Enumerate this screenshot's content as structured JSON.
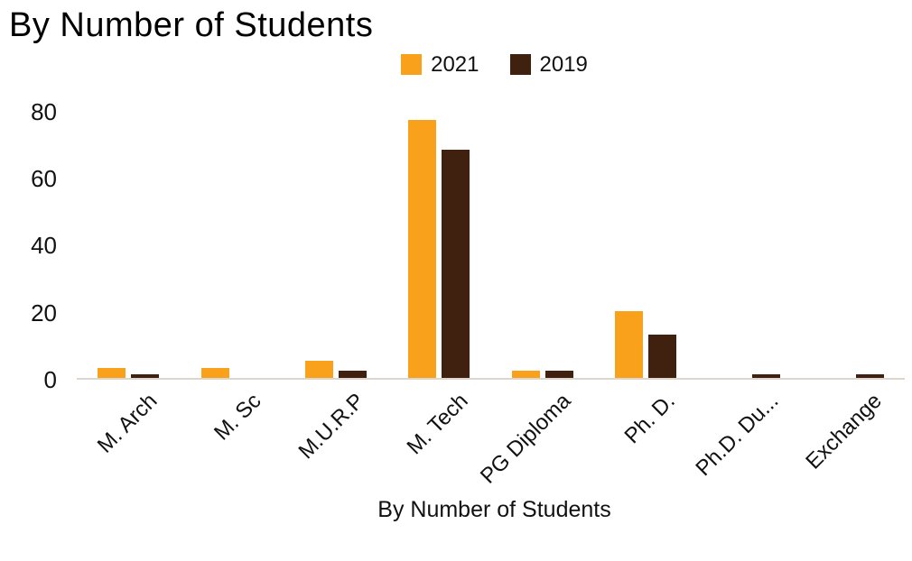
{
  "title": "By Number of Students",
  "legend": {
    "items": [
      {
        "label": "2021",
        "color": "#F9A11B"
      },
      {
        "label": "2019",
        "color": "#40210F"
      }
    ]
  },
  "chart_data": {
    "type": "bar",
    "title": "By Number of Students",
    "xlabel": "By Number of Students",
    "ylabel": "",
    "categories": [
      "M. Arch",
      "M. Sc",
      "M.U.R.P",
      "M. Tech",
      "PG Diploma",
      "Ph. D.",
      "Ph.D. Du...",
      "Exchange"
    ],
    "series": [
      {
        "name": "2021",
        "color": "#F9A11B",
        "values": [
          3,
          3,
          5,
          77,
          2,
          20,
          0,
          0
        ]
      },
      {
        "name": "2019",
        "color": "#40210F",
        "values": [
          1,
          0,
          2,
          68,
          2,
          13,
          1,
          1
        ]
      }
    ],
    "yticks": [
      0,
      20,
      40,
      60,
      80
    ],
    "ylim": [
      0,
      80
    ],
    "grid": false,
    "legend_position": "top"
  }
}
